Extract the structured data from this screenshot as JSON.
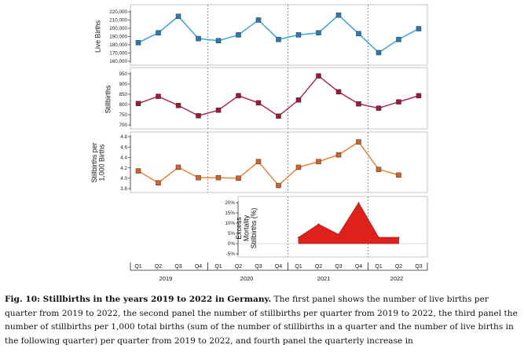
{
  "chart_data": {
    "type": "line",
    "categories": [
      "2019 Q1",
      "2019 Q2",
      "2019 Q3",
      "2019 Q4",
      "2020 Q1",
      "2020 Q2",
      "2020 Q3",
      "2020 Q4",
      "2021 Q1",
      "2021 Q2",
      "2021 Q3",
      "2021 Q4",
      "2022 Q1",
      "2022 Q2",
      "2022 Q3"
    ],
    "quarter_labels": [
      "Q1",
      "Q2",
      "Q3",
      "Q4",
      "Q1",
      "Q2",
      "Q3",
      "Q4",
      "Q1",
      "Q2",
      "Q3",
      "Q4",
      "Q1",
      "Q2",
      "Q3"
    ],
    "years": [
      "2019",
      "2020",
      "2021",
      "2022"
    ],
    "grid": false,
    "panels": [
      {
        "type": "line",
        "ylabel": "Live Births",
        "ylim": [
          160000,
          220000
        ],
        "yticks": [
          160000,
          170000,
          180000,
          190000,
          200000,
          210000,
          220000
        ],
        "ytick_labels": [
          "160,000",
          "170,000",
          "180,000",
          "190,000",
          "200,000",
          "210,000",
          "220,000"
        ],
        "color": "#2ba3d8",
        "marker_color": "#2a7ab8",
        "values": [
          182500,
          194500,
          214500,
          187500,
          185000,
          192000,
          210000,
          186500,
          192000,
          194500,
          216000,
          193500,
          170500,
          186500,
          199500
        ]
      },
      {
        "type": "line",
        "ylabel": "Stillbirths",
        "ylim": [
          700,
          950
        ],
        "yticks": [
          700,
          750,
          800,
          850,
          900,
          950
        ],
        "ytick_labels": [
          "700",
          "750",
          "800",
          "850",
          "900",
          "950"
        ],
        "color": "#b51a45",
        "marker_color": "#a01838",
        "values": [
          805,
          840,
          795,
          745,
          772,
          843,
          808,
          743,
          822,
          940,
          862,
          803,
          782,
          813,
          843
        ]
      },
      {
        "type": "line",
        "ylabel": [
          "Stillbirths per",
          "1,000 Births"
        ],
        "ylim": [
          3.8,
          4.8
        ],
        "yticks": [
          3.8,
          4.0,
          4.2,
          4.4,
          4.6,
          4.8
        ],
        "ytick_labels": [
          "3.8",
          "4.0",
          "4.2",
          "4.4",
          "4.6",
          "4.8"
        ],
        "color": "#f07a2a",
        "marker_color": "#d4602a",
        "values": [
          4.14,
          3.91,
          4.21,
          4.01,
          4.01,
          4.0,
          4.32,
          3.86,
          4.21,
          4.32,
          4.45,
          4.7,
          4.17,
          4.06,
          null
        ]
      },
      {
        "type": "area",
        "ylabel": [
          "Excess",
          "Mortality",
          "Stillbirths (%)"
        ],
        "ylim": [
          -5,
          20
        ],
        "yticks": [
          -5,
          0,
          5,
          10,
          15,
          20
        ],
        "ytick_labels": [
          "-5%",
          "0%",
          "5%",
          "10%",
          "15%",
          "20%"
        ],
        "color": "#e0201b",
        "values": [
          null,
          null,
          null,
          null,
          null,
          null,
          null,
          null,
          3.0,
          9.5,
          4.5,
          20.0,
          3.0,
          3.0,
          null
        ]
      }
    ]
  },
  "caption": {
    "label": "Fig. 10: Stillbirths in the years 2019 to 2022 in Germany.",
    "text": " The first panel shows the number of live births per quarter from 2019 to 2022, the second panel the number of stillbirths per quarter from 2019 to 2022, the third panel the number of stillbirths per 1,000 total births (sum of the number of stillbirths in a quarter and the number of live births in the following quarter) per quarter from 2019 to 2022, and fourth panel the quarterly increase in"
  }
}
